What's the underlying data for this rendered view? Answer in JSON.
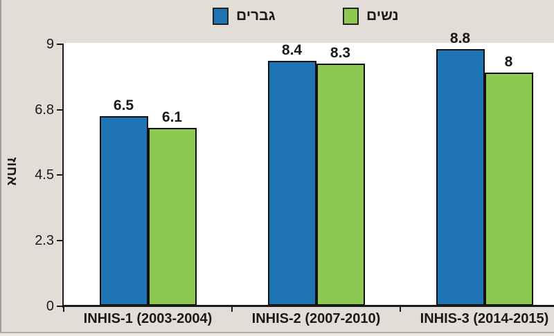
{
  "chart_data": {
    "type": "bar",
    "title": "",
    "categories": [
      "INHIS-1 (2003-2004)",
      "INHIS-2 (2007-2010)",
      "INHIS-3 (2014-2015)"
    ],
    "series": [
      {
        "name": "גברים",
        "color": "#1F75B4",
        "values": [
          6.5,
          8.4,
          8.8
        ],
        "labels": [
          "6.5",
          "8.4",
          "8.8"
        ]
      },
      {
        "name": "נשים",
        "color": "#8DC950",
        "values": [
          6.1,
          8.3,
          8.0
        ],
        "labels": [
          "6.1",
          "8.3",
          "8"
        ]
      }
    ],
    "ylabel": "אחוז",
    "ylim": [
      0,
      9
    ],
    "yticks": [
      {
        "value": 0,
        "label": "0"
      },
      {
        "value": 2.25,
        "label": "2.3"
      },
      {
        "value": 4.5,
        "label": "4.5"
      },
      {
        "value": 6.75,
        "label": "6.8"
      },
      {
        "value": 9,
        "label": "9"
      }
    ],
    "grid": false,
    "legend_position": "top",
    "plot_background": "#FFFFFF",
    "page_background": "#E2DED7",
    "axis_color": "#1A1A1A"
  }
}
